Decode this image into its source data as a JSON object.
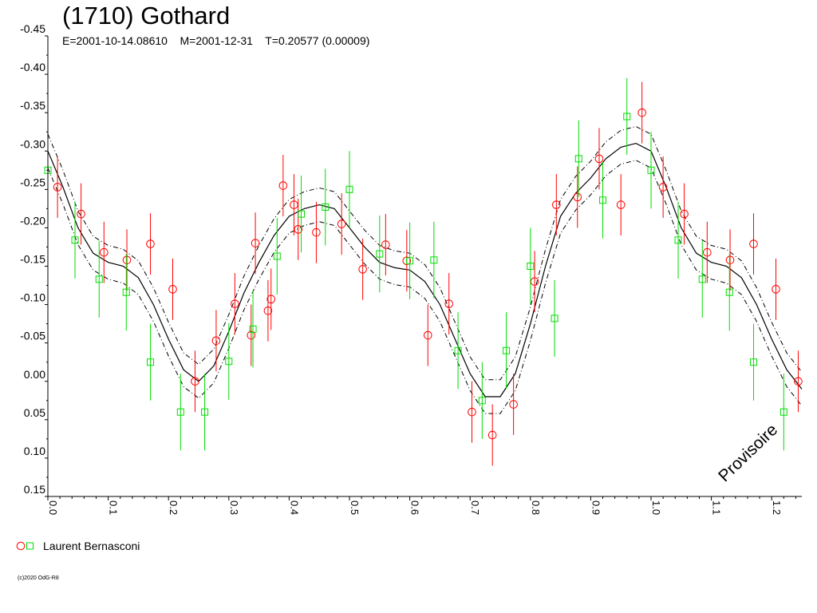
{
  "title": "(1710) Gothard",
  "subtitle": "E=2001-10-14.08610    M=2001-12-31    T=0.20577 (0.00009)",
  "legend": {
    "observer": "Laurent Bernasconi"
  },
  "copyright": "(c)2020 OdG-R8",
  "watermark": "Provisoire",
  "colors": {
    "red": "#ff0000",
    "green": "#00dd00",
    "curve": "#000000"
  },
  "chart_data": {
    "type": "scatter",
    "xlim": [
      0,
      1.25
    ],
    "ylim": [
      -0.45,
      0.15
    ],
    "y_inverted": true,
    "x_ticks": [
      "0.0",
      "0.1",
      "0.2",
      "0.3",
      "0.4",
      "0.5",
      "0.6",
      "0.7",
      "0.8",
      "0.9",
      "1.0",
      "1.1",
      "1.2"
    ],
    "y_ticks": [
      "-0.45",
      "-0.40",
      "-0.35",
      "-0.30",
      "-0.25",
      "-0.20",
      "-0.15",
      "-0.10",
      "-0.05",
      "0.00",
      "0.05",
      "0.10",
      "0.15"
    ],
    "grid": false,
    "legend_position": "bottom-left",
    "series": [
      {
        "name": "Laurent Bernasconi",
        "marker": "circle",
        "color": "#ff0000",
        "points": [
          {
            "x": 0.016,
            "y": -0.253,
            "err": 0.04
          },
          {
            "x": 0.055,
            "y": -0.218,
            "err": 0.04
          },
          {
            "x": 0.093,
            "y": -0.168,
            "err": 0.04
          },
          {
            "x": 0.131,
            "y": -0.158,
            "err": 0.04
          },
          {
            "x": 0.17,
            "y": -0.179,
            "err": 0.04
          },
          {
            "x": 0.207,
            "y": -0.12,
            "err": 0.04
          },
          {
            "x": 0.244,
            "y": 0.0,
            "err": 0.04
          },
          {
            "x": 0.279,
            "y": -0.053,
            "err": 0.04
          },
          {
            "x": 0.31,
            "y": -0.101,
            "err": 0.04
          },
          {
            "x": 0.337,
            "y": -0.06,
            "err": 0.04
          },
          {
            "x": 0.344,
            "y": -0.18,
            "err": 0.04
          },
          {
            "x": 0.365,
            "y": -0.092,
            "err": 0.04
          },
          {
            "x": 0.37,
            "y": -0.107,
            "err": 0.04
          },
          {
            "x": 0.39,
            "y": -0.255,
            "err": 0.04
          },
          {
            "x": 0.408,
            "y": -0.23,
            "err": 0.04
          },
          {
            "x": 0.415,
            "y": -0.198,
            "err": 0.04
          },
          {
            "x": 0.445,
            "y": -0.194,
            "err": 0.04
          },
          {
            "x": 0.487,
            "y": -0.205,
            "err": 0.04
          },
          {
            "x": 0.522,
            "y": -0.146,
            "err": 0.04
          },
          {
            "x": 0.56,
            "y": -0.178,
            "err": 0.04
          },
          {
            "x": 0.595,
            "y": -0.157,
            "err": 0.04
          },
          {
            "x": 0.63,
            "y": -0.06,
            "err": 0.04
          },
          {
            "x": 0.665,
            "y": -0.101,
            "err": 0.04
          },
          {
            "x": 0.703,
            "y": 0.04,
            "err": 0.04
          },
          {
            "x": 0.737,
            "y": 0.07,
            "err": 0.04
          },
          {
            "x": 0.772,
            "y": 0.03,
            "err": 0.04
          },
          {
            "x": 0.807,
            "y": -0.13,
            "err": 0.04
          },
          {
            "x": 0.843,
            "y": -0.23,
            "err": 0.04
          },
          {
            "x": 0.878,
            "y": -0.24,
            "err": 0.04
          },
          {
            "x": 0.914,
            "y": -0.29,
            "err": 0.04
          },
          {
            "x": 0.95,
            "y": -0.23,
            "err": 0.04
          },
          {
            "x": 0.985,
            "y": -0.35,
            "err": 0.04
          },
          {
            "x": 1.02,
            "y": -0.253,
            "err": 0.04
          },
          {
            "x": 1.055,
            "y": -0.218,
            "err": 0.04
          },
          {
            "x": 1.093,
            "y": -0.168,
            "err": 0.04
          },
          {
            "x": 1.131,
            "y": -0.158,
            "err": 0.04
          },
          {
            "x": 1.17,
            "y": -0.179,
            "err": 0.04
          },
          {
            "x": 1.207,
            "y": -0.12,
            "err": 0.04
          },
          {
            "x": 1.244,
            "y": 0.0,
            "err": 0.04
          }
        ]
      },
      {
        "name": "Laurent Bernasconi",
        "marker": "square",
        "color": "#00dd00",
        "points": [
          {
            "x": 0.0,
            "y": -0.275,
            "err": 0.05
          },
          {
            "x": 0.045,
            "y": -0.184,
            "err": 0.05
          },
          {
            "x": 0.085,
            "y": -0.133,
            "err": 0.05
          },
          {
            "x": 0.13,
            "y": -0.116,
            "err": 0.05
          },
          {
            "x": 0.17,
            "y": -0.025,
            "err": 0.05
          },
          {
            "x": 0.22,
            "y": 0.04,
            "err": 0.05
          },
          {
            "x": 0.26,
            "y": 0.04,
            "err": 0.05
          },
          {
            "x": 0.3,
            "y": -0.026,
            "err": 0.05
          },
          {
            "x": 0.34,
            "y": -0.068,
            "err": 0.05
          },
          {
            "x": 0.38,
            "y": -0.163,
            "err": 0.05
          },
          {
            "x": 0.42,
            "y": -0.218,
            "err": 0.05
          },
          {
            "x": 0.46,
            "y": -0.227,
            "err": 0.05
          },
          {
            "x": 0.5,
            "y": -0.25,
            "err": 0.05
          },
          {
            "x": 0.55,
            "y": -0.166,
            "err": 0.05
          },
          {
            "x": 0.6,
            "y": -0.157,
            "err": 0.05
          },
          {
            "x": 0.64,
            "y": -0.158,
            "err": 0.05
          },
          {
            "x": 0.68,
            "y": -0.04,
            "err": 0.05
          },
          {
            "x": 0.72,
            "y": 0.025,
            "err": 0.05
          },
          {
            "x": 0.76,
            "y": -0.04,
            "err": 0.05
          },
          {
            "x": 0.8,
            "y": -0.15,
            "err": 0.05
          },
          {
            "x": 0.84,
            "y": -0.082,
            "err": 0.05
          },
          {
            "x": 0.88,
            "y": -0.29,
            "err": 0.05
          },
          {
            "x": 0.92,
            "y": -0.236,
            "err": 0.05
          },
          {
            "x": 0.96,
            "y": -0.345,
            "err": 0.05
          },
          {
            "x": 1.0,
            "y": -0.275,
            "err": 0.05
          },
          {
            "x": 1.045,
            "y": -0.184,
            "err": 0.05
          },
          {
            "x": 1.085,
            "y": -0.133,
            "err": 0.05
          },
          {
            "x": 1.13,
            "y": -0.116,
            "err": 0.05
          },
          {
            "x": 1.17,
            "y": -0.025,
            "err": 0.05
          },
          {
            "x": 1.22,
            "y": 0.04,
            "err": 0.05
          }
        ]
      }
    ],
    "fit_curve": {
      "period_phase": 1.0,
      "x": [
        0.0,
        0.025,
        0.05,
        0.075,
        0.1,
        0.125,
        0.15,
        0.175,
        0.2,
        0.225,
        0.25,
        0.275,
        0.3,
        0.325,
        0.35,
        0.375,
        0.4,
        0.425,
        0.45,
        0.475,
        0.5,
        0.525,
        0.55,
        0.575,
        0.6,
        0.625,
        0.65,
        0.675,
        0.7,
        0.725,
        0.75,
        0.775,
        0.8,
        0.825,
        0.85,
        0.875,
        0.9,
        0.925,
        0.95,
        0.975,
        1.0,
        1.025,
        1.05,
        1.075,
        1.1,
        1.125,
        1.15,
        1.175,
        1.2,
        1.225,
        1.25
      ],
      "y": [
        -0.3,
        -0.253,
        -0.2,
        -0.167,
        -0.155,
        -0.15,
        -0.135,
        -0.1,
        -0.055,
        -0.015,
        0.0,
        -0.02,
        -0.065,
        -0.115,
        -0.155,
        -0.19,
        -0.215,
        -0.225,
        -0.23,
        -0.225,
        -0.2,
        -0.175,
        -0.155,
        -0.148,
        -0.145,
        -0.13,
        -0.1,
        -0.055,
        -0.01,
        0.02,
        0.02,
        -0.01,
        -0.075,
        -0.15,
        -0.215,
        -0.245,
        -0.265,
        -0.29,
        -0.305,
        -0.31,
        -0.3,
        -0.253,
        -0.2,
        -0.167,
        -0.155,
        -0.15,
        -0.135,
        -0.1,
        -0.055,
        -0.015,
        0.01
      ],
      "band": 0.022
    }
  }
}
